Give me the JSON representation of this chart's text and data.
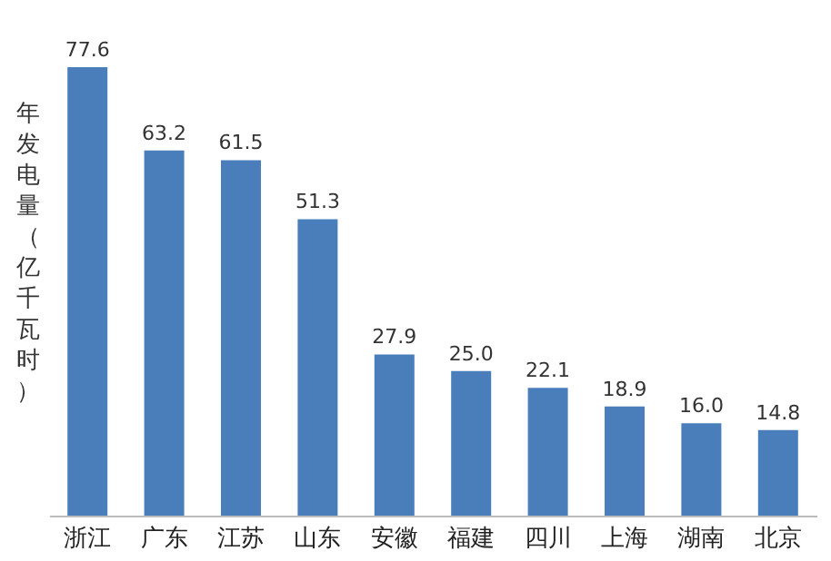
{
  "chart_data": {
    "type": "bar",
    "ylabel": "年发电量（亿千瓦时）",
    "categories": [
      "浙江",
      "广东",
      "江苏",
      "山东",
      "安徽",
      "福建",
      "四川",
      "上海",
      "湖南",
      "北京"
    ],
    "values": [
      77.6,
      63.2,
      61.5,
      51.3,
      27.9,
      25.0,
      22.1,
      18.9,
      16.0,
      14.8
    ],
    "value_labels": [
      "77.6",
      "63.2",
      "61.5",
      "51.3",
      "27.9",
      "25.0",
      "22.1",
      "18.9",
      "16.0",
      "14.8"
    ],
    "color": "#4a7ebb",
    "tick_labels": "x",
    "grid": false
  }
}
